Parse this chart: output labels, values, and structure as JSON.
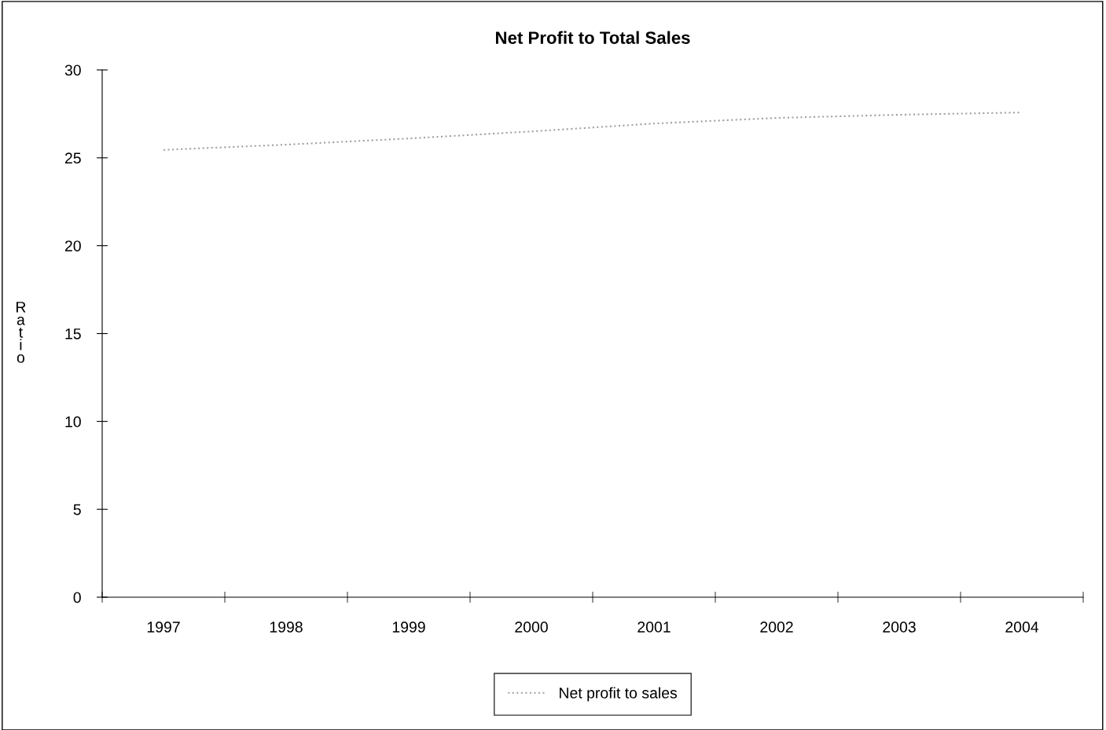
{
  "chart_data": {
    "type": "line",
    "title": "Net Profit to Total Sales",
    "ylabel": "Ratio",
    "categories": [
      "1997",
      "1998",
      "1999",
      "2000",
      "2001",
      "2002",
      "2003",
      "2004"
    ],
    "series": [
      {
        "name": "Net profit to sales",
        "color": "#a0a0a0",
        "values": [
          25.45,
          25.75,
          26.1,
          26.5,
          26.95,
          27.27,
          27.45,
          27.58
        ]
      }
    ],
    "ylim": [
      0,
      30
    ],
    "yticks": [
      0,
      5,
      10,
      15,
      20,
      25,
      30
    ],
    "grid": false,
    "legend": "bottom",
    "line_style": "dotted",
    "marker": "none"
  }
}
